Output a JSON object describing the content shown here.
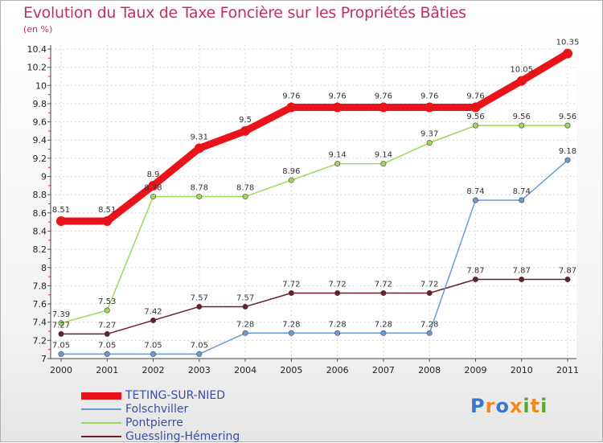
{
  "chart_data": {
    "type": "line",
    "title": "Evolution du Taux de Taxe Foncière sur les Propriétés Bâties",
    "unit_label": "(en %)",
    "x": [
      "2000",
      "2001",
      "2002",
      "2003",
      "2004",
      "2005",
      "2006",
      "2007",
      "2008",
      "2009",
      "2010",
      "2011"
    ],
    "ylim": [
      7,
      10.4
    ],
    "yticks": [
      "7",
      "7.2",
      "7.4",
      "7.6",
      "7.8",
      "8",
      "8.2",
      "8.4",
      "8.6",
      "8.8",
      "9",
      "9.2",
      "9.4",
      "9.6",
      "9.8",
      "10",
      "10.2",
      "10.4"
    ],
    "grid": true,
    "series": [
      {
        "name": "Guessling-Hémering",
        "color": "#6b1e28",
        "values": [
          7.27,
          7.27,
          7.42,
          7.57,
          7.57,
          7.72,
          7.72,
          7.72,
          7.72,
          7.87,
          7.87,
          7.87
        ],
        "labels": [
          "7.27",
          "7.27",
          "7.42",
          "7.57",
          "7.57",
          "7.72",
          "7.72",
          "7.72",
          "7.72",
          "7.87",
          "7.87",
          "7.87"
        ]
      },
      {
        "name": "Pontpierre",
        "color": "#9ed85c",
        "values": [
          7.39,
          7.53,
          8.78,
          8.78,
          8.78,
          8.96,
          9.14,
          9.14,
          9.37,
          9.56,
          9.56,
          9.56
        ],
        "labels": [
          "7.39",
          "7.53",
          "8.78",
          "8.78",
          "8.78",
          "8.96",
          "9.14",
          "9.14",
          "9.37",
          "9.56",
          "9.56",
          "9.56"
        ]
      },
      {
        "name": "Folschviller",
        "color": "#6b9bd2",
        "values": [
          7.05,
          7.05,
          7.05,
          7.05,
          7.28,
          7.28,
          7.28,
          7.28,
          7.28,
          8.74,
          8.74,
          9.18
        ],
        "labels": [
          "7.05",
          "7.05",
          "7.05",
          "7.05",
          "7.28",
          "7.28",
          "7.28",
          "7.28",
          "7.28",
          "8.74",
          "8.74",
          "9.18"
        ]
      },
      {
        "name": "TETING-SUR-NIED",
        "color": "#e8141a",
        "values": [
          8.51,
          8.51,
          8.9,
          9.31,
          9.5,
          9.76,
          9.76,
          9.76,
          9.76,
          9.76,
          10.05,
          10.35
        ],
        "labels": [
          "8.51",
          "8.51",
          "8.9",
          "9.31",
          "9.5",
          "9.76",
          "9.76",
          "9.76",
          "9.76",
          "9.76",
          "10.05",
          "10.35"
        ]
      }
    ],
    "legend": [
      {
        "name": "TETING-SUR-NIED",
        "color": "#e8141a"
      },
      {
        "name": "Folschviller",
        "color": "#6b9bd2"
      },
      {
        "name": "Pontpierre",
        "color": "#9ed85c"
      },
      {
        "name": "Guessling-Hémering",
        "color": "#6b1e28"
      }
    ],
    "legend_position": "bottom-left"
  },
  "logo": {
    "text": "Proxiti"
  }
}
